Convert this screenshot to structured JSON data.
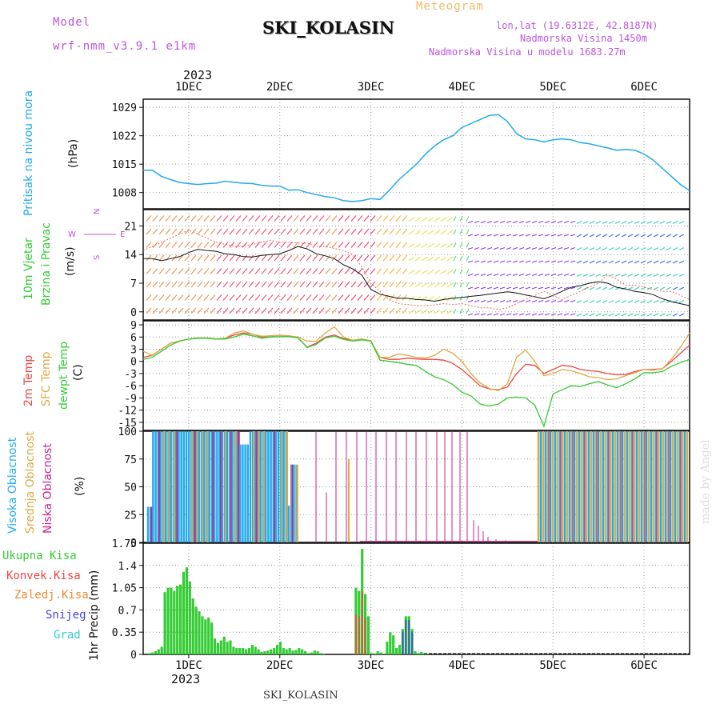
{
  "header": {
    "model_label": "Model",
    "model_name": "wrf-nmm_v3.9.1 e1km",
    "station": "SKI_KOLASIN",
    "meteogram": "Meteogram",
    "lonlat": "lon,lat (19.6312E, 42.8187N)",
    "altitude": "Nadmorska Visina 1450m",
    "model_altitude": "Nadmorska Visina u modelu 1683.27m",
    "year_top": "2023",
    "year_bottom": "2023",
    "footer_station": "SKI_KOLASIN",
    "watermark": "made by Angel"
  },
  "panel_labels": {
    "pressure": [
      "Pritisak na nivou mora",
      "(hPa)"
    ],
    "wind": [
      "10m Vjetar",
      "Brzina i Pravac",
      "(m/s)"
    ],
    "temp": [
      "2m Temp",
      "SFC Temp",
      "dewpt Temp",
      "(C)"
    ],
    "cloud": [
      "Visoka Oblacnost",
      "Srednja Oblacnost",
      "Niska Oblacnost",
      "(%)"
    ],
    "precip": [
      "Ukupna Kisa",
      "Konvek.Kisa",
      "Zaledj.Kisa",
      "Snijeg",
      "Grad",
      "1hr Precip (mm)"
    ],
    "compass": [
      "N",
      "S",
      "W",
      "E"
    ]
  },
  "colors": {
    "pressure": "#22aaee",
    "total_rain": "#33cc33",
    "conv_rain": "#ee4444",
    "frz_rain": "#ee8833",
    "snow": "#4444dd",
    "graupel": "#33cccc",
    "t2m": "#ee4444",
    "tsfc": "#ddaa44",
    "dewpt": "#33cc33",
    "high_cloud": "#22aaee",
    "mid_cloud": "#ddaa44",
    "low_cloud": "#cc2288",
    "label_purple": "#bb55dd",
    "label_orange": "#eebb66"
  },
  "chart_data": [
    {
      "type": "line",
      "name": "pressure",
      "x_ticks": [
        "1DEC",
        "2DEC",
        "3DEC",
        "4DEC",
        "5DEC",
        "6DEC"
      ],
      "x_range_days": [
        -0.5,
        5.5
      ],
      "ylim": [
        1004,
        1031
      ],
      "y_ticks": [
        1008,
        1015,
        1022,
        1029
      ],
      "ylabel": "(hPa)",
      "x": [
        -0.5,
        -0.4,
        -0.3,
        -0.2,
        -0.1,
        0,
        0.1,
        0.2,
        0.3,
        0.4,
        0.5,
        0.6,
        0.7,
        0.8,
        0.9,
        1.0,
        1.1,
        1.2,
        1.3,
        1.4,
        1.5,
        1.6,
        1.7,
        1.8,
        1.9,
        2.0,
        2.1,
        2.2,
        2.3,
        2.4,
        2.5,
        2.6,
        2.7,
        2.8,
        2.9,
        3.0,
        3.1,
        3.2,
        3.3,
        3.4,
        3.5,
        3.6,
        3.7,
        3.8,
        3.9,
        4.0,
        4.1,
        4.2,
        4.3,
        4.4,
        4.5,
        4.6,
        4.7,
        4.8,
        4.9,
        5.0,
        5.1,
        5.2,
        5.3,
        5.4,
        5.5
      ],
      "y": [
        1013.5,
        1013.5,
        1012,
        1011.2,
        1010.5,
        1010.2,
        1010,
        1010.2,
        1010.3,
        1010.8,
        1010.5,
        1010.3,
        1010.2,
        1009.8,
        1009.6,
        1009.6,
        1008.6,
        1008.7,
        1008,
        1007.5,
        1007,
        1006.7,
        1006,
        1005.8,
        1006,
        1006.5,
        1006.3,
        1008.5,
        1011,
        1013,
        1015,
        1017.5,
        1019.5,
        1021,
        1022,
        1024,
        1025,
        1026,
        1027,
        1027.2,
        1025.5,
        1022.5,
        1021.2,
        1021,
        1020.5,
        1021,
        1021.2,
        1021,
        1020.3,
        1020,
        1019.5,
        1019,
        1018.4,
        1018.6,
        1018.4,
        1017.5,
        1016,
        1014,
        1012,
        1010,
        1008.5
      ]
    },
    {
      "type": "line",
      "name": "wind",
      "ylim": [
        -2,
        25
      ],
      "y_ticks": [
        0,
        7,
        14,
        21
      ],
      "ylabel": "(m/s)",
      "series": [
        {
          "values": [
            13,
            13,
            12.5,
            13,
            13.5,
            14.5,
            15.3,
            15,
            14.8,
            14.2,
            14,
            13.5,
            13.4,
            13.8,
            14,
            14.2,
            15,
            16,
            15.4,
            14.2,
            13.7,
            13,
            11.5,
            10.5,
            9,
            5.5,
            4.3,
            3.8,
            3.3,
            3.3,
            3,
            2.9,
            2.6,
            3,
            3.3,
            3.5,
            3.8,
            4,
            4.3,
            4.6,
            4.9,
            4.6,
            4.1,
            3.7,
            3.2,
            4,
            5,
            6,
            6.4,
            7,
            7.4,
            7,
            6,
            5.6,
            5,
            4.7,
            4.2,
            3.2,
            2.5,
            2,
            1.5
          ]
        },
        {
          "values": [
            15,
            16,
            17,
            18,
            19,
            20,
            19,
            18,
            17,
            16.5,
            16,
            16,
            16.5,
            17,
            17.5,
            17,
            17,
            16.8,
            16.8,
            16,
            16,
            15.5,
            15,
            14,
            11,
            7,
            5,
            3,
            2,
            1.8,
            1.5,
            1.5,
            1.7,
            2,
            1.8,
            2,
            1.5,
            1,
            1,
            0.5,
            1,
            2,
            3,
            4,
            5,
            4,
            3,
            4,
            5,
            6,
            7,
            9,
            8,
            6.5,
            6.5,
            6,
            5.5,
            5,
            5,
            4,
            3
          ]
        }
      ]
    },
    {
      "type": "line",
      "name": "temperature",
      "ylim": [
        -17,
        10
      ],
      "y_ticks": [
        -15,
        -12,
        -9,
        -6,
        -3,
        0,
        3,
        6,
        9
      ],
      "ylabel": "(C)",
      "series": [
        {
          "values": [
            1,
            1.5,
            3,
            4.5,
            5,
            5.5,
            5.7,
            5.7,
            5.5,
            5.7,
            6.5,
            7,
            6.7,
            6,
            6.3,
            6.4,
            6.3,
            5.8,
            3.5,
            4.5,
            6,
            6.5,
            5.6,
            5.2,
            5.5,
            5,
            1,
            0.5,
            0.5,
            0.8,
            0.6,
            0.5,
            0.5,
            0.3,
            -0.5,
            -2,
            -4,
            -6,
            -6.8,
            -7,
            -6.3,
            -3,
            -0.7,
            -1,
            -3,
            -2,
            -1,
            -1.2,
            -2,
            -2.3,
            -2.5,
            -3,
            -3.3,
            -3.2,
            -2.5,
            -2,
            -2,
            -1.8,
            0,
            2,
            4
          ]
        },
        {
          "values": [
            2.5,
            1.5,
            3,
            4.5,
            5,
            5.5,
            5.8,
            5.8,
            5.5,
            5.7,
            7,
            7.5,
            6.7,
            6.2,
            6.3,
            6.4,
            6.3,
            6,
            5,
            5,
            7,
            8.5,
            6,
            5.2,
            5.5,
            5.1,
            1,
            1,
            1.8,
            1.5,
            1,
            0.8,
            1.5,
            3,
            2,
            0,
            -3,
            -5.3,
            -6.7,
            -7.2,
            -5.5,
            1,
            2.8,
            0,
            -3.5,
            -3,
            -2,
            -2.3,
            -3,
            -3.8,
            -4,
            -4.5,
            -4.3,
            -3.5,
            -2.8,
            -2,
            -2.2,
            -1.8,
            0.5,
            3.5,
            7
          ]
        },
        {
          "values": [
            0.5,
            1,
            2.5,
            4,
            5,
            5.5,
            5.7,
            5.7,
            5.5,
            5.5,
            6,
            6.7,
            6.3,
            5.7,
            6,
            6.1,
            6.1,
            5.8,
            3.4,
            4.2,
            5.8,
            6.2,
            5.4,
            5,
            5.3,
            5,
            0.3,
            0,
            -0.3,
            -0.7,
            -1,
            -2.5,
            -3.8,
            -4.5,
            -5.7,
            -7.6,
            -8.5,
            -10.5,
            -11,
            -10.5,
            -9,
            -8.8,
            -9,
            -10.8,
            -16,
            -8,
            -7,
            -6,
            -6.2,
            -5.5,
            -5,
            -5.8,
            -6.5,
            -5.5,
            -4.3,
            -2.8,
            -2.8,
            -2.5,
            -1.2,
            -0.3,
            0.5
          ]
        }
      ]
    },
    {
      "type": "bar",
      "name": "cloud",
      "ylim": [
        0,
        100
      ],
      "y_ticks": [
        0,
        25,
        50,
        75,
        100
      ],
      "ylabel": "(%)"
    },
    {
      "type": "bar",
      "name": "precip",
      "ylim": [
        0,
        1.75
      ],
      "y_ticks": [
        0,
        0.35,
        0.7,
        1.05,
        1.4,
        1.75
      ],
      "y_tick_labels": [
        "0",
        "0.35",
        "0.7",
        "1.05",
        "1.4",
        "1.75"
      ],
      "ylabel": "1hr Precip (mm)",
      "values": [
        0.02,
        0.03,
        0.05,
        0.08,
        0.12,
        0.98,
        1.05,
        1.05,
        1.0,
        1.08,
        1.1,
        1.3,
        1.37,
        1.15,
        0.88,
        0.75,
        0.68,
        0.6,
        0.55,
        0.58,
        0.5,
        0.25,
        0.18,
        0.22,
        0.28,
        0.2,
        0.22,
        0.12,
        0.1,
        0.1,
        0.1,
        0.08,
        0.1,
        0.15,
        0.12,
        0.08,
        0.04,
        0.05,
        0.06,
        0.08,
        0.1,
        0.15,
        0.2,
        0.1,
        0.08,
        0.1,
        0.06,
        0.07,
        0.1,
        0.08,
        0.05,
        0.02,
        0.03,
        0.06,
        0.05,
        0.02,
        0.01,
        1.05,
        1.0,
        1.66,
        0.95,
        0.6,
        0.02,
        0.01,
        0.05,
        0.03,
        0.01,
        0.2,
        0.35,
        0.3,
        0.1,
        0.15,
        0.4,
        0.6,
        0.6,
        0.4,
        0.05,
        0.02,
        0.04,
        0.02,
        0.01
      ]
    }
  ]
}
